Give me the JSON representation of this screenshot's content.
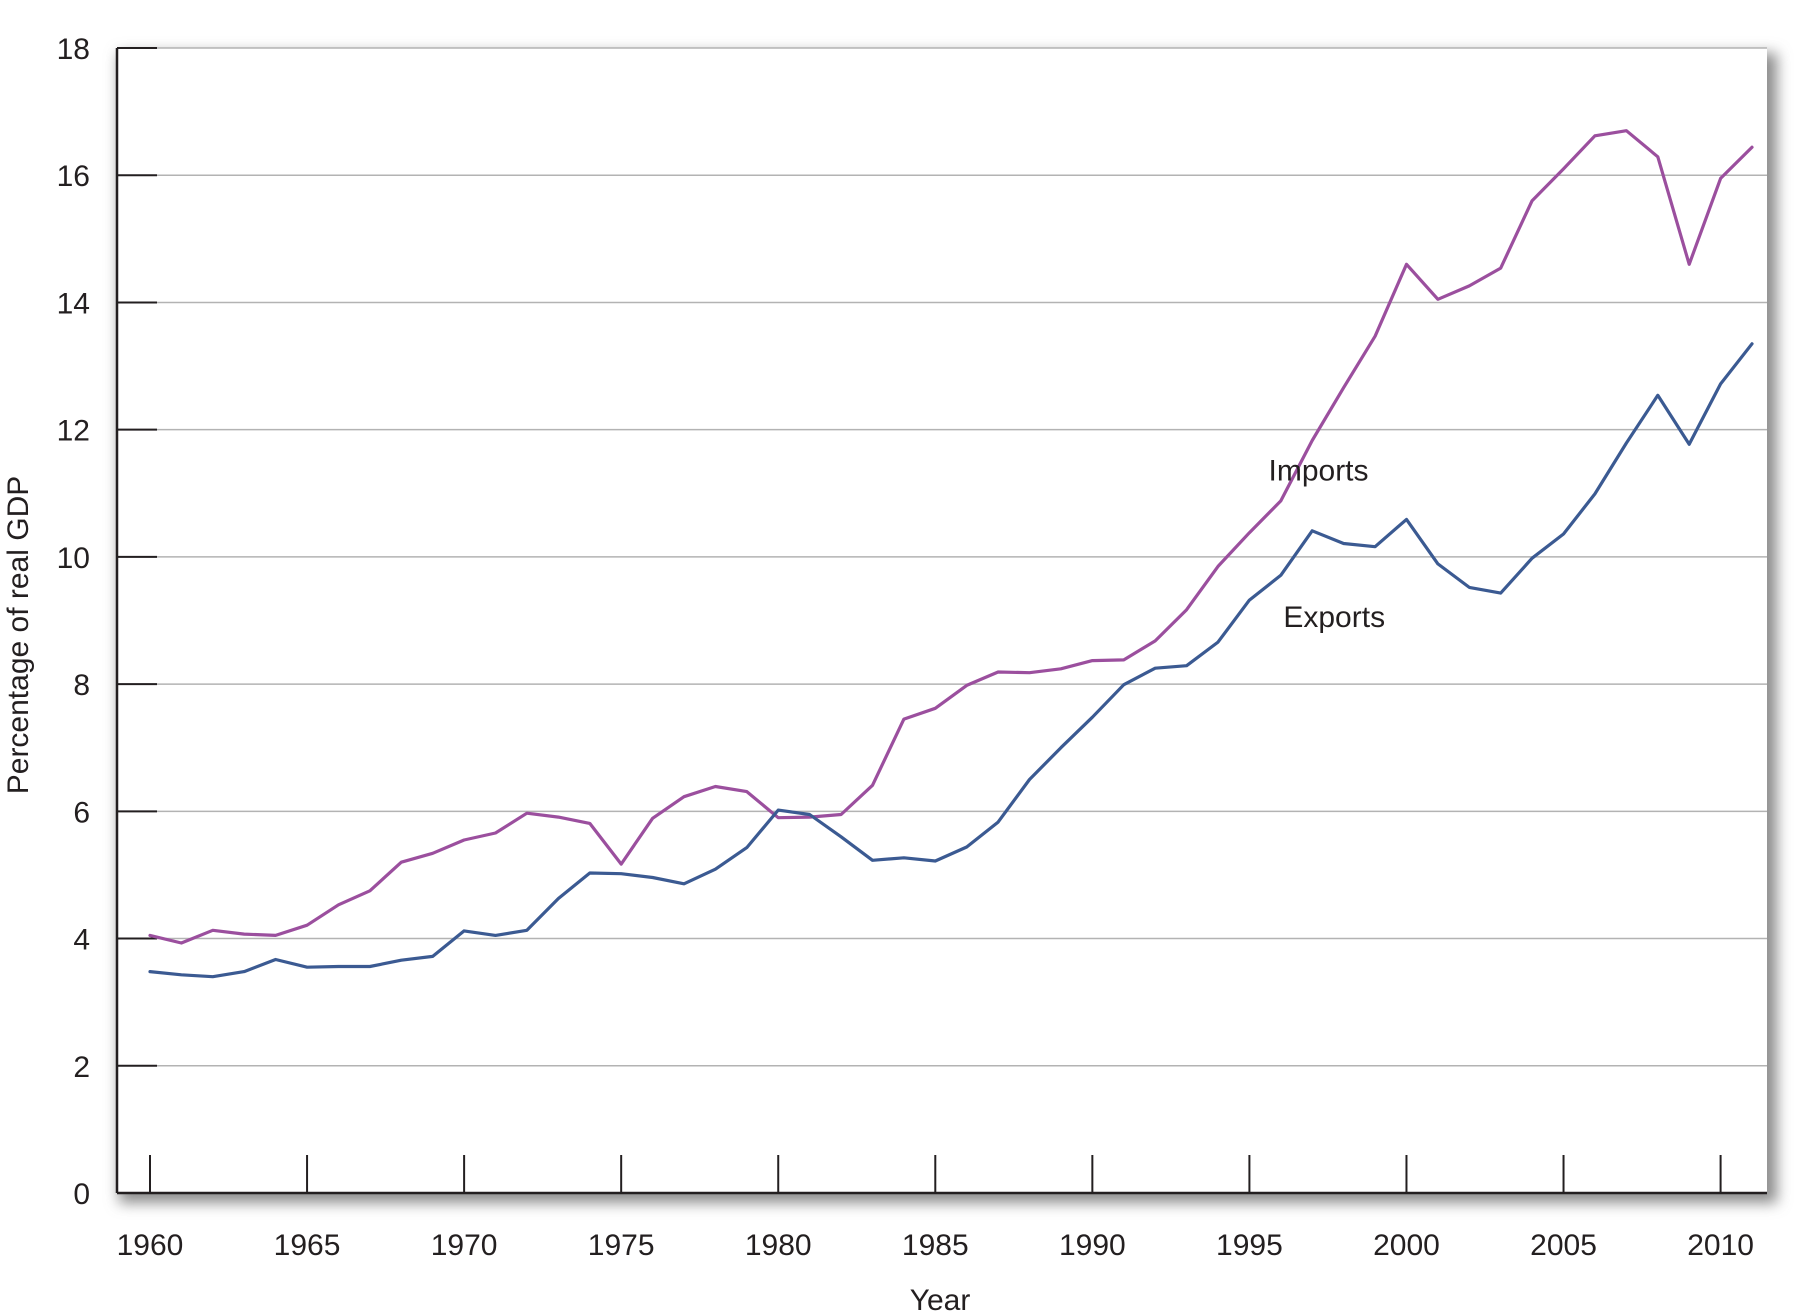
{
  "chart_data": {
    "type": "line",
    "xlabel": "Year",
    "ylabel": "Percentage of real GDP",
    "xlim": [
      1960,
      2011
    ],
    "ylim": [
      0,
      18
    ],
    "x_ticks": [
      1960,
      1965,
      1970,
      1975,
      1980,
      1985,
      1990,
      1995,
      2000,
      2005,
      2010
    ],
    "y_ticks": [
      0,
      2,
      4,
      6,
      8,
      10,
      12,
      14,
      16,
      18
    ],
    "grid": true,
    "legend": "none (series labeled inline)",
    "x": [
      1960,
      1961,
      1962,
      1963,
      1964,
      1965,
      1966,
      1967,
      1968,
      1969,
      1970,
      1971,
      1972,
      1973,
      1974,
      1975,
      1976,
      1977,
      1978,
      1979,
      1980,
      1981,
      1982,
      1983,
      1984,
      1985,
      1986,
      1987,
      1988,
      1989,
      1990,
      1991,
      1992,
      1993,
      1994,
      1995,
      1996,
      1997,
      1998,
      1999,
      2000,
      2001,
      2002,
      2003,
      2004,
      2005,
      2006,
      2007,
      2008,
      2009,
      2010,
      2011
    ],
    "series": [
      {
        "name": "Imports",
        "color": "#9b4f9e",
        "values": [
          4.05,
          3.93,
          4.13,
          4.07,
          4.05,
          4.21,
          4.53,
          4.75,
          5.2,
          5.34,
          5.55,
          5.66,
          5.97,
          5.91,
          5.81,
          5.17,
          5.89,
          6.23,
          6.39,
          6.31,
          5.9,
          5.91,
          5.95,
          6.41,
          7.45,
          7.62,
          7.98,
          8.19,
          8.18,
          8.24,
          8.37,
          8.38,
          8.68,
          9.17,
          9.85,
          10.38,
          10.88,
          11.83,
          12.66,
          13.47,
          14.6,
          14.05,
          14.26,
          14.54,
          15.6,
          16.1,
          16.62,
          16.7,
          16.29,
          14.6,
          15.95,
          16.44
        ]
      },
      {
        "name": "Exports",
        "color": "#3b5a92",
        "values": [
          3.48,
          3.43,
          3.4,
          3.48,
          3.67,
          3.55,
          3.56,
          3.56,
          3.66,
          3.72,
          4.12,
          4.05,
          4.13,
          4.63,
          5.03,
          5.02,
          4.96,
          4.86,
          5.09,
          5.43,
          6.02,
          5.95,
          5.6,
          5.23,
          5.27,
          5.22,
          5.44,
          5.83,
          6.5,
          7.0,
          7.48,
          7.99,
          8.25,
          8.29,
          8.66,
          9.32,
          9.71,
          10.41,
          10.21,
          10.16,
          10.59,
          9.89,
          9.52,
          9.43,
          9.98,
          10.36,
          10.99,
          11.79,
          12.54,
          11.77,
          12.72,
          13.35
        ]
      }
    ],
    "annotations": [
      {
        "text": "Imports",
        "year": 1997.2,
        "value": 11.2
      },
      {
        "text": "Exports",
        "year": 1997.7,
        "value": 8.9
      }
    ]
  }
}
